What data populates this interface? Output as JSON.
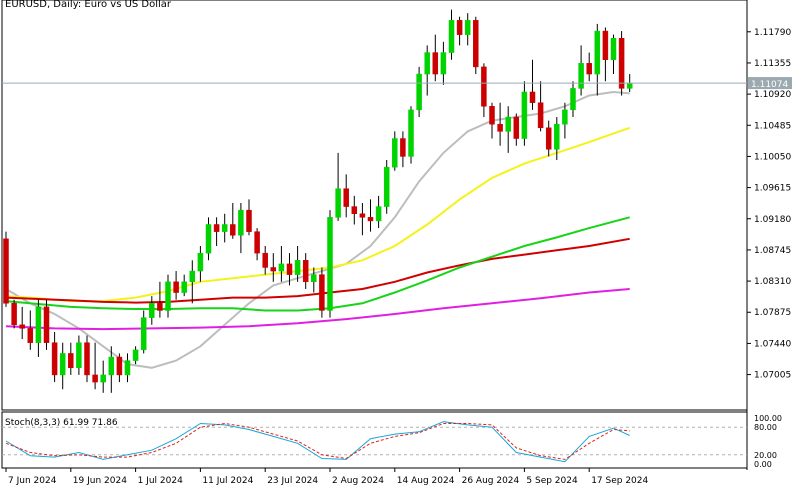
{
  "window": {
    "title": "EURUSD, Daily:  Euro vs US Dollar"
  },
  "colors": {
    "up": "#00d400",
    "down": "#cc0000",
    "wick": "#000000",
    "ma_gray": "#bdbdbd",
    "ma_yellow": "#f5f21a",
    "ma_red": "#d10000",
    "ma_green": "#18d418",
    "ma_magenta": "#e020e0",
    "price_line": "#9aaab0",
    "stoch_main": "#1aa7d6",
    "stoch_signal": "#e02020"
  },
  "chart_data": [
    {
      "type": "candlestick",
      "title": "EURUSD, Daily:  Euro vs US Dollar",
      "ylim": [
        1.0665,
        1.1215
      ],
      "y_ticks": [
        "1.11790",
        "1.11355",
        "1.10920",
        "1.10485",
        "1.10050",
        "1.09615",
        "1.09180",
        "1.08745",
        "1.08310",
        "1.07875",
        "1.07440",
        "1.07005"
      ],
      "x_ticks": [
        "7 Jun 2024",
        "19 Jun 2024",
        "1 Jul 2024",
        "11 Jul 2024",
        "23 Jul 2024",
        "2 Aug 2024",
        "14 Aug 2024",
        "26 Aug 2024",
        "5 Sep 2024",
        "17 Sep 2024"
      ],
      "x_tick_index": [
        0,
        8,
        16,
        24,
        32,
        40,
        48,
        56,
        64,
        72
      ],
      "current_price": "1.11074",
      "ohlc": [
        [
          1.089,
          1.09,
          1.0795,
          1.08
        ],
        [
          1.08,
          1.0805,
          1.0765,
          1.077
        ],
        [
          1.077,
          1.0795,
          1.075,
          1.0765
        ],
        [
          1.0765,
          1.079,
          1.0735,
          1.0745
        ],
        [
          1.0745,
          1.0805,
          1.0725,
          1.0795
        ],
        [
          1.0795,
          1.0805,
          1.0735,
          1.0745
        ],
        [
          1.0745,
          1.076,
          1.069,
          1.07
        ],
        [
          1.07,
          1.0745,
          1.068,
          1.073
        ],
        [
          1.073,
          1.0745,
          1.07,
          1.071
        ],
        [
          1.071,
          1.0755,
          1.07,
          1.0745
        ],
        [
          1.0745,
          1.0755,
          1.069,
          1.07
        ],
        [
          1.07,
          1.0745,
          1.068,
          1.069
        ],
        [
          1.069,
          1.072,
          1.0675,
          1.07
        ],
        [
          1.07,
          1.074,
          1.0675,
          1.0725
        ],
        [
          1.0725,
          1.073,
          1.069,
          1.07
        ],
        [
          1.07,
          1.073,
          1.069,
          1.072
        ],
        [
          1.072,
          1.074,
          1.0715,
          1.0735
        ],
        [
          1.0735,
          1.079,
          1.073,
          1.078
        ],
        [
          1.078,
          1.081,
          1.077,
          1.08
        ],
        [
          1.08,
          1.083,
          1.078,
          1.079
        ],
        [
          1.079,
          1.084,
          1.078,
          1.083
        ],
        [
          1.083,
          1.0845,
          1.0805,
          1.0815
        ],
        [
          1.0815,
          1.084,
          1.081,
          1.083
        ],
        [
          1.083,
          1.086,
          1.08,
          1.0845
        ],
        [
          1.0845,
          1.088,
          1.083,
          1.087
        ],
        [
          1.087,
          1.092,
          1.086,
          1.091
        ],
        [
          1.091,
          1.092,
          1.088,
          1.09
        ],
        [
          1.09,
          1.0925,
          1.0885,
          1.091
        ],
        [
          1.091,
          1.094,
          1.089,
          1.0895
        ],
        [
          1.0895,
          1.094,
          1.087,
          1.093
        ],
        [
          1.093,
          1.0945,
          1.0895,
          1.09
        ],
        [
          1.09,
          1.0905,
          1.086,
          1.087
        ],
        [
          1.087,
          1.088,
          1.084,
          1.085
        ],
        [
          1.085,
          1.087,
          1.083,
          1.0845
        ],
        [
          1.0845,
          1.088,
          1.083,
          1.0855
        ],
        [
          1.0855,
          1.087,
          1.0825,
          1.084
        ],
        [
          1.084,
          1.088,
          1.083,
          1.086
        ],
        [
          1.086,
          1.087,
          1.082,
          1.083
        ],
        [
          1.083,
          1.085,
          1.0815,
          1.084
        ],
        [
          1.084,
          1.085,
          1.078,
          1.079
        ],
        [
          1.079,
          1.093,
          1.078,
          1.092
        ],
        [
          1.092,
          1.101,
          1.0915,
          1.096
        ],
        [
          1.096,
          1.098,
          1.092,
          1.0935
        ],
        [
          1.0935,
          1.095,
          1.091,
          1.0925
        ],
        [
          1.0925,
          1.094,
          1.0895,
          1.092
        ],
        [
          1.092,
          1.0945,
          1.09,
          1.0915
        ],
        [
          1.0915,
          1.095,
          1.0905,
          1.0935
        ],
        [
          1.0935,
          1.1,
          1.0925,
          1.099
        ],
        [
          1.099,
          1.104,
          1.0985,
          1.103
        ],
        [
          1.103,
          1.104,
          1.099,
          1.1005
        ],
        [
          1.1005,
          1.1075,
          1.0995,
          1.107
        ],
        [
          1.107,
          1.113,
          1.106,
          1.112
        ],
        [
          1.112,
          1.116,
          1.109,
          1.115
        ],
        [
          1.115,
          1.1175,
          1.111,
          1.112
        ],
        [
          1.112,
          1.1165,
          1.1105,
          1.115
        ],
        [
          1.115,
          1.121,
          1.114,
          1.1195
        ],
        [
          1.1195,
          1.12,
          1.116,
          1.1175
        ],
        [
          1.1175,
          1.1205,
          1.116,
          1.1195
        ],
        [
          1.1195,
          1.12,
          1.112,
          1.113
        ],
        [
          1.113,
          1.1135,
          1.106,
          1.1075
        ],
        [
          1.1075,
          1.108,
          1.103,
          1.105
        ],
        [
          1.105,
          1.108,
          1.102,
          1.104
        ],
        [
          1.104,
          1.1075,
          1.101,
          1.106
        ],
        [
          1.106,
          1.1065,
          1.102,
          1.103
        ],
        [
          1.103,
          1.111,
          1.102,
          1.1095
        ],
        [
          1.1095,
          1.114,
          1.107,
          1.108
        ],
        [
          1.108,
          1.111,
          1.104,
          1.1045
        ],
        [
          1.1045,
          1.1055,
          1.1005,
          1.1015
        ],
        [
          1.1015,
          1.106,
          1.1,
          1.105
        ],
        [
          1.105,
          1.108,
          1.103,
          1.107
        ],
        [
          1.107,
          1.111,
          1.106,
          1.11
        ],
        [
          1.11,
          1.116,
          1.109,
          1.1135
        ],
        [
          1.1135,
          1.115,
          1.111,
          1.112
        ],
        [
          1.112,
          1.119,
          1.109,
          1.118
        ],
        [
          1.118,
          1.1185,
          1.111,
          1.114
        ],
        [
          1.114,
          1.1175,
          1.112,
          1.117
        ],
        [
          1.117,
          1.118,
          1.109,
          1.11
        ],
        [
          1.11,
          1.112,
          1.1095,
          1.1107
        ]
      ],
      "moving_averages": [
        {
          "color_key": "ma_gray",
          "x": [
            0,
            3,
            6,
            9,
            12,
            15,
            18,
            21,
            24,
            27,
            30,
            33,
            36,
            39,
            42,
            45,
            48,
            51,
            54,
            57,
            60,
            63,
            66,
            69,
            72,
            75,
            77
          ],
          "values": [
            1.082,
            1.08,
            1.0785,
            1.0765,
            1.074,
            1.0715,
            1.071,
            1.072,
            1.074,
            1.077,
            1.08,
            1.0825,
            1.0835,
            1.0845,
            1.0855,
            1.088,
            1.092,
            1.097,
            1.101,
            1.104,
            1.1055,
            1.106,
            1.1065,
            1.1075,
            1.109,
            1.1095,
            1.1093
          ]
        },
        {
          "color_key": "ma_yellow",
          "x": [
            0,
            4,
            8,
            12,
            16,
            20,
            24,
            28,
            32,
            36,
            40,
            44,
            48,
            52,
            56,
            60,
            64,
            68,
            72,
            77
          ],
          "values": [
            1.081,
            1.0807,
            1.0803,
            1.0803,
            1.0808,
            1.0817,
            1.083,
            1.0835,
            1.084,
            1.0845,
            1.085,
            1.086,
            1.088,
            1.091,
            1.0945,
            1.0975,
            1.0995,
            1.101,
            1.1025,
            1.1045
          ]
        },
        {
          "color_key": "ma_red",
          "x": [
            0,
            4,
            8,
            12,
            16,
            20,
            24,
            28,
            32,
            36,
            40,
            44,
            48,
            52,
            56,
            60,
            64,
            68,
            72,
            77
          ],
          "values": [
            1.0808,
            1.0806,
            1.0804,
            1.0802,
            1.0801,
            1.0802,
            1.0805,
            1.0808,
            1.0808,
            1.081,
            1.0815,
            1.082,
            1.083,
            1.0843,
            1.0853,
            1.0862,
            1.0868,
            1.0874,
            1.088,
            1.089
          ]
        },
        {
          "color_key": "ma_green",
          "x": [
            0,
            4,
            8,
            12,
            16,
            20,
            24,
            28,
            32,
            36,
            40,
            44,
            48,
            52,
            56,
            60,
            64,
            68,
            72,
            77
          ],
          "values": [
            1.0803,
            1.0799,
            1.0795,
            1.0793,
            1.0792,
            1.0792,
            1.0793,
            1.0793,
            1.079,
            1.079,
            1.0793,
            1.08,
            1.0815,
            1.0832,
            1.085,
            1.0865,
            1.088,
            1.0892,
            1.0905,
            1.092
          ]
        },
        {
          "color_key": "ma_magenta",
          "x": [
            0,
            6,
            12,
            18,
            24,
            30,
            36,
            42,
            48,
            54,
            60,
            66,
            72,
            77
          ],
          "values": [
            1.0768,
            1.0765,
            1.0764,
            1.0765,
            1.0766,
            1.0768,
            1.0772,
            1.0778,
            1.0785,
            1.0793,
            1.08,
            1.0807,
            1.0815,
            1.082
          ]
        }
      ]
    },
    {
      "type": "line",
      "title": "Stoch(8,3,3) 61.99 71.86",
      "ylim": [
        0,
        100
      ],
      "y_ticks": [
        "100.00",
        "80.00",
        "20.00",
        "0.00"
      ],
      "levels": [
        80,
        20
      ],
      "series": [
        {
          "color_key": "stoch_main",
          "x": [
            0,
            3,
            6,
            9,
            12,
            15,
            18,
            21,
            24,
            27,
            30,
            33,
            36,
            39,
            42,
            45,
            48,
            51,
            54,
            57,
            60,
            63,
            66,
            69,
            72,
            75,
            77
          ],
          "values": [
            50,
            18,
            15,
            25,
            10,
            20,
            30,
            55,
            88,
            85,
            75,
            60,
            45,
            12,
            10,
            55,
            65,
            70,
            92,
            85,
            80,
            25,
            15,
            5,
            60,
            78,
            62
          ]
        },
        {
          "color_key": "stoch_signal",
          "x": [
            0,
            3,
            6,
            9,
            12,
            15,
            18,
            21,
            24,
            27,
            30,
            33,
            36,
            39,
            42,
            45,
            48,
            51,
            54,
            57,
            60,
            63,
            66,
            69,
            72,
            75,
            77
          ],
          "values": [
            45,
            25,
            18,
            20,
            15,
            15,
            25,
            45,
            80,
            88,
            80,
            65,
            50,
            20,
            12,
            45,
            60,
            68,
            88,
            88,
            85,
            35,
            18,
            10,
            45,
            75,
            72
          ]
        }
      ]
    }
  ]
}
